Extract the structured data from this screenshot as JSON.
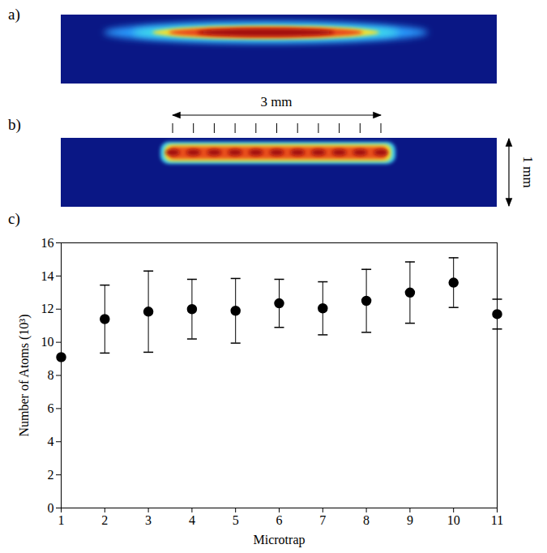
{
  "panels": [
    {
      "label": "a)"
    },
    {
      "label": "b)",
      "scale_bar_x": "3 mm",
      "scale_bar_y": "1 mm"
    }
  ],
  "chart_data": {
    "type": "scatter",
    "panel_label": "c)",
    "x_label": "Microtrap",
    "y_label": "Number of Atoms (10³)",
    "x": [
      1,
      2,
      3,
      4,
      5,
      6,
      7,
      8,
      9,
      10,
      11
    ],
    "values": [
      9.1,
      11.4,
      11.85,
      12.0,
      11.9,
      12.35,
      12.05,
      12.5,
      13.0,
      13.6,
      11.7
    ],
    "errors": [
      null,
      2.05,
      2.45,
      1.8,
      1.95,
      1.45,
      1.6,
      1.9,
      1.85,
      1.5,
      0.9
    ],
    "xlim": [
      1,
      11
    ],
    "xticks": [
      1,
      2,
      3,
      4,
      5,
      6,
      7,
      8,
      9,
      10,
      11
    ],
    "ylim": [
      0,
      16
    ],
    "yticks": [
      0,
      2,
      4,
      6,
      8,
      10,
      12,
      14,
      16
    ],
    "color": "#000000",
    "marker": "circle"
  }
}
